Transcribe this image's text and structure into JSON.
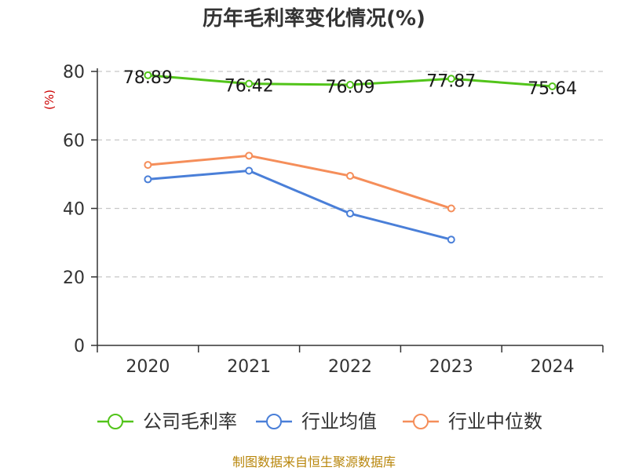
{
  "chart_data": {
    "type": "line",
    "title": "历年毛利率变化情况(%)",
    "ylabel": "(%)",
    "xlabel": "",
    "categories": [
      "2020",
      "2021",
      "2022",
      "2023",
      "2024"
    ],
    "ylim": [
      0,
      80
    ],
    "yticks": [
      "0",
      "20",
      "40",
      "60",
      "80"
    ],
    "grid": true,
    "legend": "bottom",
    "series": [
      {
        "name": "公司毛利率",
        "color": "#52c41a",
        "values": [
          78.89,
          76.42,
          76.09,
          77.87,
          75.64
        ],
        "labels": [
          "78.89",
          "76.42",
          "76.09",
          "77.87",
          "75.64"
        ]
      },
      {
        "name": "行业均值",
        "color": "#4a7fd8",
        "values": [
          48.5,
          51.0,
          38.5,
          30.9,
          null
        ]
      },
      {
        "name": "行业中位数",
        "color": "#f58e5a",
        "values": [
          52.7,
          55.4,
          49.5,
          40.0,
          null
        ]
      }
    ],
    "source": "制图数据来自恒生聚源数据库"
  }
}
